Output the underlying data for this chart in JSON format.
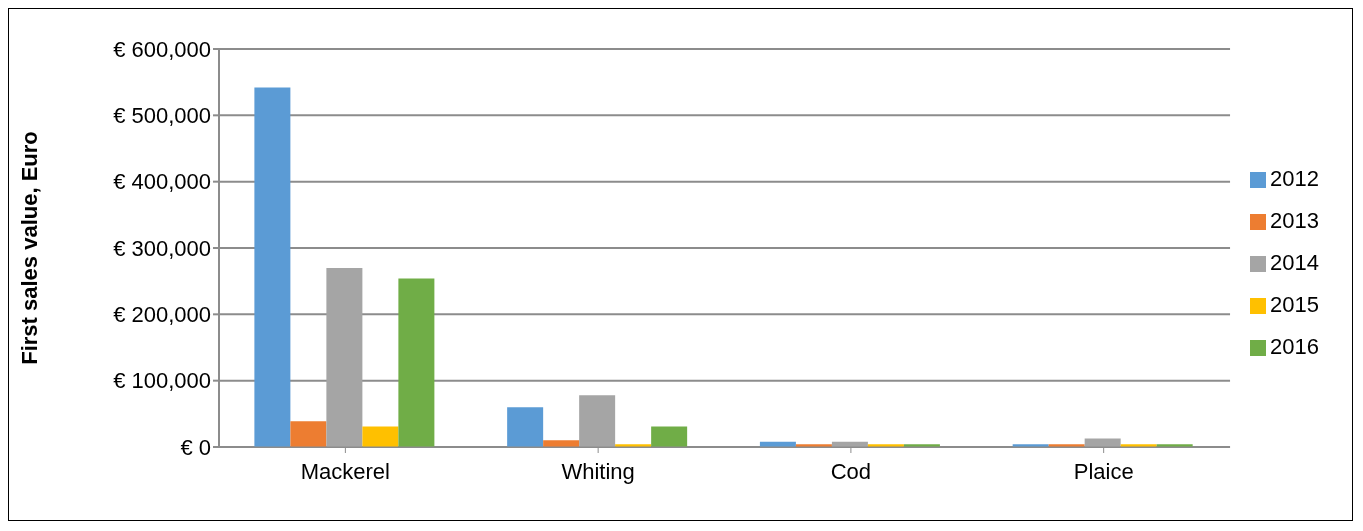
{
  "chart_data": {
    "type": "bar",
    "ylabel": "First sales value, Euro",
    "categories": [
      "Mackerel",
      "Whiting",
      "Cod",
      "Plaice"
    ],
    "series": [
      {
        "name": "2012",
        "color": "#5b9bd5",
        "values": [
          542000,
          60000,
          8000,
          4000
        ]
      },
      {
        "name": "2013",
        "color": "#ed7d31",
        "values": [
          39000,
          10000,
          4000,
          4000
        ]
      },
      {
        "name": "2014",
        "color": "#a5a5a5",
        "values": [
          270000,
          78000,
          8000,
          13000
        ]
      },
      {
        "name": "2015",
        "color": "#ffc000",
        "values": [
          31000,
          4000,
          4000,
          4000
        ]
      },
      {
        "name": "2016",
        "color": "#70ad47",
        "values": [
          254000,
          31000,
          4000,
          4000
        ]
      }
    ],
    "ylim": [
      0,
      600000
    ],
    "yticks": [
      {
        "value": 0,
        "label": "€ 0"
      },
      {
        "value": 100000,
        "label": "€ 100,000"
      },
      {
        "value": 200000,
        "label": "€ 200,000"
      },
      {
        "value": 300000,
        "label": "€ 300,000"
      },
      {
        "value": 400000,
        "label": "€ 400,000"
      },
      {
        "value": 500000,
        "label": "€ 500,000"
      },
      {
        "value": 600000,
        "label": "€ 600,000"
      }
    ],
    "grid": "y",
    "legend": "right"
  }
}
